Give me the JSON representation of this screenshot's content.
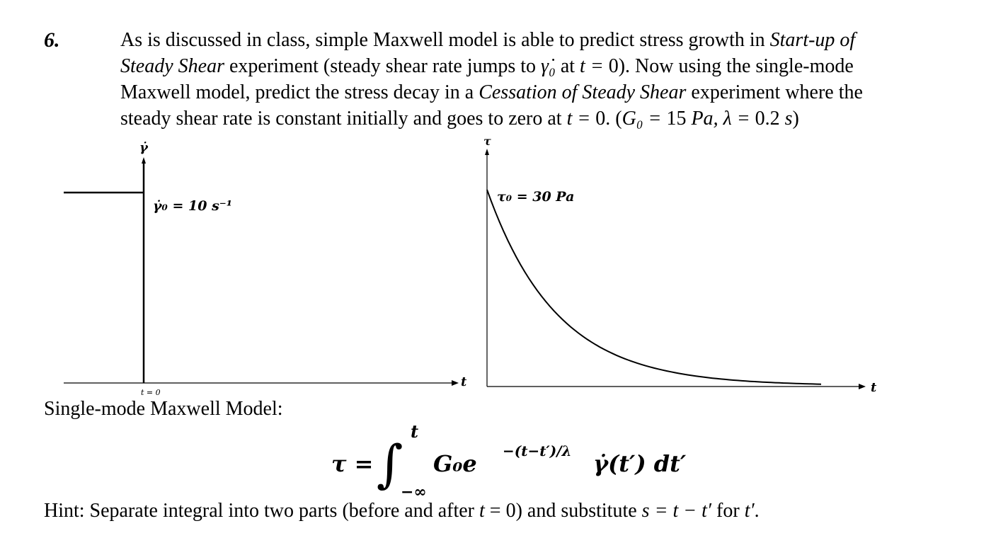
{
  "question_number": "6.",
  "problem": {
    "l1_a": "As is discussed in class, simple Maxwell model is able to predict stress growth in ",
    "l1_b": "Start-up of",
    "l2_a": "Steady Shear",
    "l2_b": " experiment (steady shear rate jumps to ",
    "l2_c": " at ",
    "l2_d": "). Now using the single-mode",
    "l3_a": "Maxwell model, predict the stress decay in a ",
    "l3_b": "Cessation of Steady Shear",
    "l3_c": " experiment where the",
    "l4_a": "steady shear rate is constant initially and goes to zero at ",
    "l4_b": "0. (",
    "l4_c": "15 ",
    "l4_d": "0.2 ",
    "l4_e": ")",
    "sym_gamma0": "γ̇₀",
    "sym_t_eq": "t = ",
    "sym_zero": "0",
    "sym_G0": "G₀ = ",
    "sym_Pa": "Pa",
    "sym_comma_lambda": ", λ = ",
    "sym_s": "s"
  },
  "figure_left": {
    "y_axis_label": "γ̇",
    "x_axis_label": "t",
    "level_label": "γ̇₀ = 10 s⁻¹",
    "tick_label": "t = 0"
  },
  "figure_right": {
    "y_axis_label": "τ",
    "x_axis_label": "t",
    "start_label": "τ₀ = 30 Pa"
  },
  "model_label": "Single-mode Maxwell Model:",
  "equation": {
    "lhs": "τ =",
    "integral_sign": "∫",
    "upper_limit": "t",
    "lower_limit": "−∞",
    "integrand_G": "G₀e",
    "integrand_exp": "−(t−t′)/λ",
    "integrand_rest": "γ̇(t′) dt′"
  },
  "hint": {
    "a": "Hint: Separate integral into two parts (before and after ",
    "b": "t",
    "c": " = 0) and substitute ",
    "d": "s = t − t′",
    "e": " for ",
    "f": "t′",
    "g": "."
  }
}
